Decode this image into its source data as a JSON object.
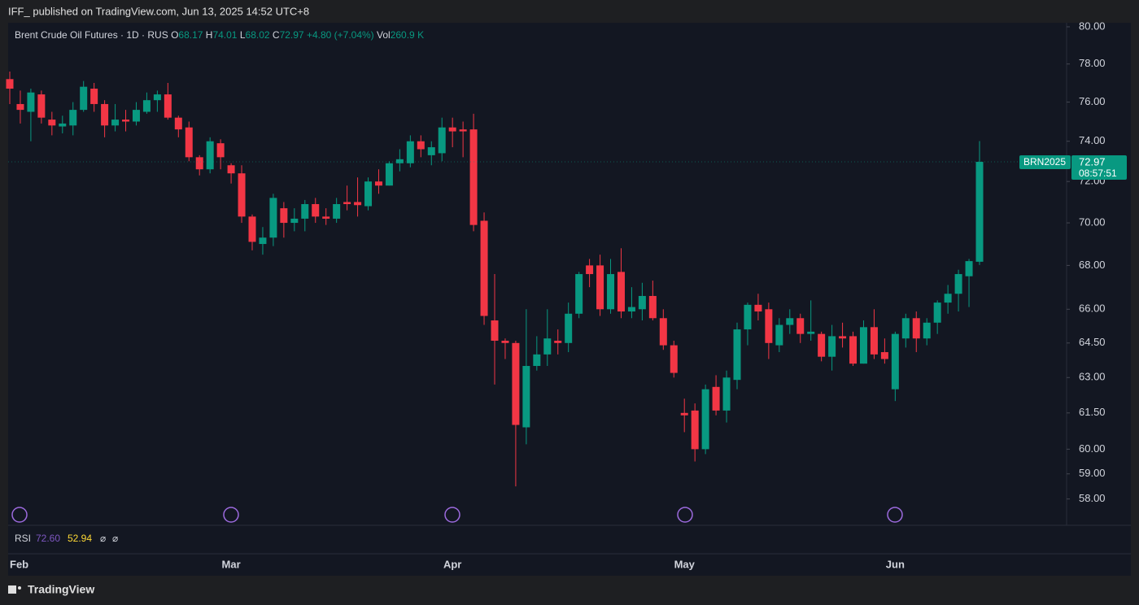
{
  "header": {
    "published": "IFF_ published on TradingView.com, Jun 13, 2025 14:52 UTC+8"
  },
  "chart_data": {
    "type": "candlestick",
    "title": "Brent Crude Oil Futures · 1D · RUS",
    "ohlc_labels": [
      "O",
      "H",
      "L",
      "C"
    ],
    "change_label": "+4.80 (+7.04%)",
    "volume_label": "Vol",
    "volume": "260.9 K",
    "symbol": "BRN2025",
    "countdown": "08:57:51",
    "up_color": "#089981",
    "down_color": "#f23645",
    "log_scale": true,
    "categories": [
      "Feb",
      null,
      null,
      null,
      null,
      null,
      null,
      null,
      null,
      null,
      null,
      null,
      null,
      null,
      null,
      null,
      null,
      null,
      null,
      null,
      null,
      "Mar",
      null,
      null,
      null,
      null,
      null,
      null,
      null,
      null,
      null,
      null,
      null,
      null,
      null,
      null,
      null,
      null,
      null,
      null,
      null,
      null,
      "Apr",
      null,
      null,
      null,
      null,
      null,
      null,
      null,
      null,
      null,
      null,
      null,
      null,
      null,
      null,
      null,
      null,
      null,
      null,
      null,
      null,
      null,
      "May",
      null,
      null,
      null,
      null,
      null,
      null,
      null,
      null,
      null,
      null,
      null,
      null,
      null,
      null,
      null,
      null,
      null,
      null,
      null,
      "Jun",
      null,
      null,
      null,
      null,
      null,
      null,
      null,
      null
    ],
    "open": [
      77.2,
      75.9,
      75.5,
      76.4,
      75.1,
      74.75,
      74.8,
      75.6,
      76.7,
      75.9,
      74.8,
      75.1,
      75.0,
      75.5,
      76.1,
      76.4,
      75.2,
      74.7,
      73.2,
      72.6,
      73.9,
      72.8,
      72.4,
      70.3,
      69.0,
      69.3,
      70.7,
      70.0,
      70.2,
      70.9,
      70.3,
      70.2,
      71.0,
      71.0,
      70.8,
      72.0,
      71.8,
      72.9,
      72.9,
      74.0,
      73.3,
      73.4,
      74.7,
      74.6,
      74.6,
      70.1,
      65.5,
      64.6,
      64.5,
      60.9,
      63.5,
      64.0,
      64.6,
      64.5,
      65.8,
      68.0,
      68.0,
      66.0,
      67.7,
      65.9,
      66.0,
      66.6,
      65.6,
      64.4,
      61.5,
      61.6,
      60.0,
      62.6,
      61.6,
      62.9,
      65.1,
      66.2,
      66.0,
      64.4,
      65.3,
      65.6,
      64.9,
      64.9,
      63.9,
      64.8,
      64.8,
      63.6,
      65.2,
      64.1,
      62.5,
      64.7,
      65.6,
      64.7,
      65.4,
      66.3,
      66.7,
      67.5,
      68.17
    ],
    "high": [
      77.6,
      76.6,
      76.7,
      76.6,
      75.5,
      75.3,
      76.0,
      77.1,
      77.0,
      76.1,
      75.9,
      75.6,
      76.0,
      76.5,
      76.6,
      77.0,
      75.3,
      75.0,
      73.3,
      74.2,
      74.1,
      72.9,
      72.8,
      70.4,
      69.8,
      71.4,
      71.0,
      70.7,
      71.1,
      71.2,
      70.7,
      71.2,
      71.8,
      72.2,
      72.2,
      72.6,
      73.0,
      73.6,
      74.3,
      74.3,
      74.0,
      75.2,
      75.2,
      75.0,
      75.4,
      70.5,
      67.6,
      64.7,
      64.6,
      66.0,
      64.8,
      66.0,
      65.1,
      66.3,
      67.7,
      68.3,
      68.5,
      68.3,
      68.8,
      67.0,
      67.2,
      67.3,
      66.0,
      64.6,
      62.1,
      61.9,
      62.7,
      63.1,
      63.3,
      65.4,
      66.3,
      66.7,
      66.3,
      65.6,
      66.0,
      65.8,
      66.4,
      65.0,
      65.3,
      65.4,
      65.0,
      65.5,
      66.0,
      64.7,
      65.0,
      65.8,
      65.9,
      65.6,
      66.4,
      67.1,
      67.8,
      68.3,
      74.01
    ],
    "low": [
      75.9,
      74.9,
      74.0,
      74.9,
      74.3,
      74.4,
      74.3,
      75.5,
      75.5,
      74.2,
      74.5,
      74.5,
      74.8,
      75.4,
      75.5,
      75.1,
      74.2,
      73.0,
      72.3,
      72.4,
      72.6,
      71.9,
      70.0,
      68.7,
      68.5,
      68.9,
      69.3,
      69.6,
      69.6,
      70.0,
      69.9,
      70.0,
      70.6,
      70.3,
      70.6,
      71.4,
      71.8,
      72.5,
      72.7,
      73.2,
      72.8,
      73.0,
      73.7,
      73.2,
      69.6,
      65.3,
      62.7,
      63.8,
      58.5,
      60.2,
      63.3,
      63.5,
      64.0,
      64.1,
      65.6,
      67.0,
      65.7,
      65.8,
      65.6,
      65.6,
      65.5,
      65.5,
      64.2,
      63.0,
      60.7,
      59.5,
      59.8,
      61.4,
      61.1,
      62.5,
      64.4,
      65.5,
      63.8,
      64.1,
      64.9,
      64.5,
      64.6,
      63.7,
      63.3,
      64.3,
      63.5,
      63.6,
      63.8,
      63.6,
      62.0,
      64.3,
      64.1,
      64.4,
      64.9,
      65.8,
      65.9,
      66.1,
      68.02
    ],
    "close": [
      76.7,
      75.6,
      76.5,
      75.2,
      74.8,
      74.9,
      75.6,
      76.8,
      75.9,
      74.8,
      75.1,
      75.0,
      75.6,
      76.1,
      76.4,
      75.2,
      74.6,
      73.2,
      72.6,
      74.0,
      73.2,
      72.4,
      70.3,
      69.1,
      69.3,
      71.2,
      70.0,
      70.2,
      70.9,
      70.3,
      70.2,
      70.9,
      70.9,
      70.85,
      72.0,
      71.8,
      72.9,
      73.1,
      74.0,
      73.6,
      73.7,
      74.7,
      74.5,
      74.5,
      69.9,
      65.7,
      64.6,
      64.5,
      61.0,
      63.5,
      64.0,
      64.7,
      64.5,
      65.8,
      67.6,
      67.6,
      66.0,
      67.6,
      65.9,
      66.1,
      66.6,
      65.6,
      64.4,
      63.2,
      61.4,
      60.0,
      62.5,
      61.6,
      63.0,
      65.1,
      66.2,
      65.9,
      64.5,
      65.3,
      65.6,
      64.9,
      65.0,
      63.9,
      64.8,
      64.7,
      63.6,
      65.2,
      64.0,
      63.8,
      64.9,
      65.6,
      64.7,
      65.4,
      66.3,
      66.7,
      67.6,
      68.2,
      72.97
    ],
    "ylim": [
      57.0,
      80.22
    ],
    "yticks": [
      {
        "value": 80,
        "label": "80.00"
      },
      {
        "value": 78,
        "label": "78.00"
      },
      {
        "value": 76,
        "label": "76.00"
      },
      {
        "value": 74,
        "label": "74.00"
      },
      {
        "value": 72,
        "label": "72.00"
      },
      {
        "value": 70,
        "label": "70.00"
      },
      {
        "value": 68,
        "label": "68.00"
      },
      {
        "value": 66,
        "label": "66.00"
      },
      {
        "value": 64.5,
        "label": "64.50"
      },
      {
        "value": 63,
        "label": "63.00"
      },
      {
        "value": 61.5,
        "label": "61.50"
      },
      {
        "value": 60,
        "label": "60.00"
      },
      {
        "value": 59,
        "label": "59.00"
      },
      {
        "value": 58,
        "label": "58.00"
      }
    ]
  },
  "rsi": {
    "label": "RSI",
    "value": "72.60",
    "ma": "52.94",
    "extra": [
      "⌀",
      "⌀"
    ]
  },
  "footer": {
    "brand": "TradingView"
  }
}
